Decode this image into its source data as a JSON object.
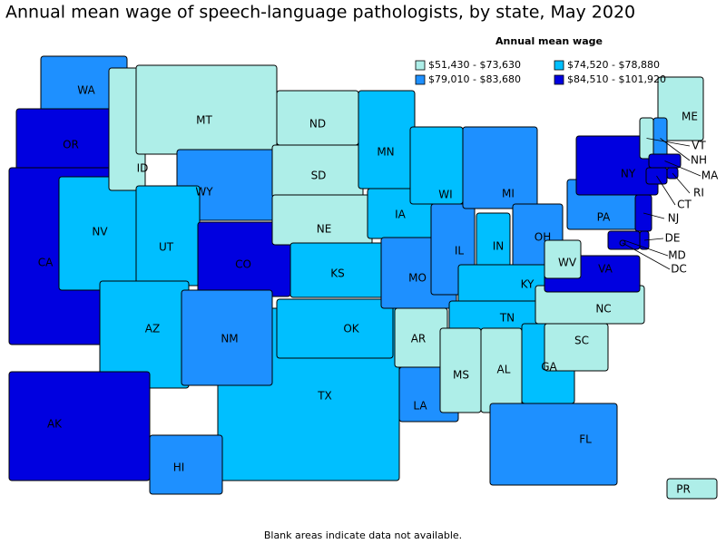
{
  "title": "Annual mean wage of speech-language pathologists, by state, May 2020",
  "legend": {
    "title": "Annual mean wage",
    "entries": [
      {
        "label": "$51,430 - $73,630",
        "color": "#aeeee8"
      },
      {
        "label": "$74,520 - $78,880",
        "color": "#00bfff"
      },
      {
        "label": "$79,010 - $83,680",
        "color": "#1e90ff"
      },
      {
        "label": "$84,510 - $101,920",
        "color": "#0000e0"
      }
    ]
  },
  "states": [
    {
      "label": "TX",
      "color": "#00bfff"
    },
    {
      "label": "WA",
      "color": "#1e90ff"
    },
    {
      "label": "OR",
      "color": "#0000e0"
    },
    {
      "label": "CA",
      "color": "#0000e0"
    },
    {
      "label": "NV",
      "color": "#00bfff"
    },
    {
      "label": "ID",
      "color": "#aeeee8"
    },
    {
      "label": "MT",
      "color": "#aeeee8"
    },
    {
      "label": "WY",
      "color": "#1e90ff"
    },
    {
      "label": "UT",
      "color": "#00bfff"
    },
    {
      "label": "AZ",
      "color": "#00bfff"
    },
    {
      "label": "CO",
      "color": "#0000e0"
    },
    {
      "label": "NM",
      "color": "#1e90ff"
    },
    {
      "label": "ND",
      "color": "#aeeee8"
    },
    {
      "label": "SD",
      "color": "#aeeee8"
    },
    {
      "label": "NE",
      "color": "#aeeee8"
    },
    {
      "label": "KS",
      "color": "#00bfff"
    },
    {
      "label": "OK",
      "color": "#00bfff"
    },
    {
      "label": "MN",
      "color": "#00bfff"
    },
    {
      "label": "IA",
      "color": "#00bfff"
    },
    {
      "label": "MO",
      "color": "#1e90ff"
    },
    {
      "label": "AR",
      "color": "#aeeee8"
    },
    {
      "label": "LA",
      "color": "#1e90ff"
    },
    {
      "label": "WI",
      "color": "#00bfff"
    },
    {
      "label": "IL",
      "color": "#1e90ff"
    },
    {
      "label": "MI",
      "color": "#1e90ff"
    },
    {
      "label": "IN",
      "color": "#00bfff"
    },
    {
      "label": "OH",
      "color": "#1e90ff"
    },
    {
      "label": "KY",
      "color": "#00bfff"
    },
    {
      "label": "TN",
      "color": "#00bfff"
    },
    {
      "label": "MS",
      "color": "#aeeee8"
    },
    {
      "label": "AL",
      "color": "#aeeee8"
    },
    {
      "label": "GA",
      "color": "#00bfff"
    },
    {
      "label": "FL",
      "color": "#1e90ff"
    },
    {
      "label": "SC",
      "color": "#aeeee8"
    },
    {
      "label": "NC",
      "color": "#aeeee8"
    },
    {
      "label": "VA",
      "color": "#0000e0"
    },
    {
      "label": "WV",
      "color": "#aeeee8"
    },
    {
      "label": "PA",
      "color": "#1e90ff"
    },
    {
      "label": "NY",
      "color": "#0000e0"
    },
    {
      "label": "ME",
      "color": "#aeeee8"
    },
    {
      "label": "VT",
      "color": "#aeeee8"
    },
    {
      "label": "NH",
      "color": "#1e90ff"
    },
    {
      "label": "MA",
      "color": "#0000e0"
    },
    {
      "label": "RI",
      "color": "#0000e0"
    },
    {
      "label": "CT",
      "color": "#0000e0"
    },
    {
      "label": "NJ",
      "color": "#0000e0"
    },
    {
      "label": "DE",
      "color": "#0000e0"
    },
    {
      "label": "MD",
      "color": "#0000e0"
    },
    {
      "label": "DC",
      "color": "#0000e0"
    },
    {
      "label": "AK",
      "color": "#0000e0"
    },
    {
      "label": "HI",
      "color": "#1e90ff"
    },
    {
      "label": "PR",
      "color": "#aeeee8"
    }
  ],
  "footnote": "Blank areas indicate data not available."
}
